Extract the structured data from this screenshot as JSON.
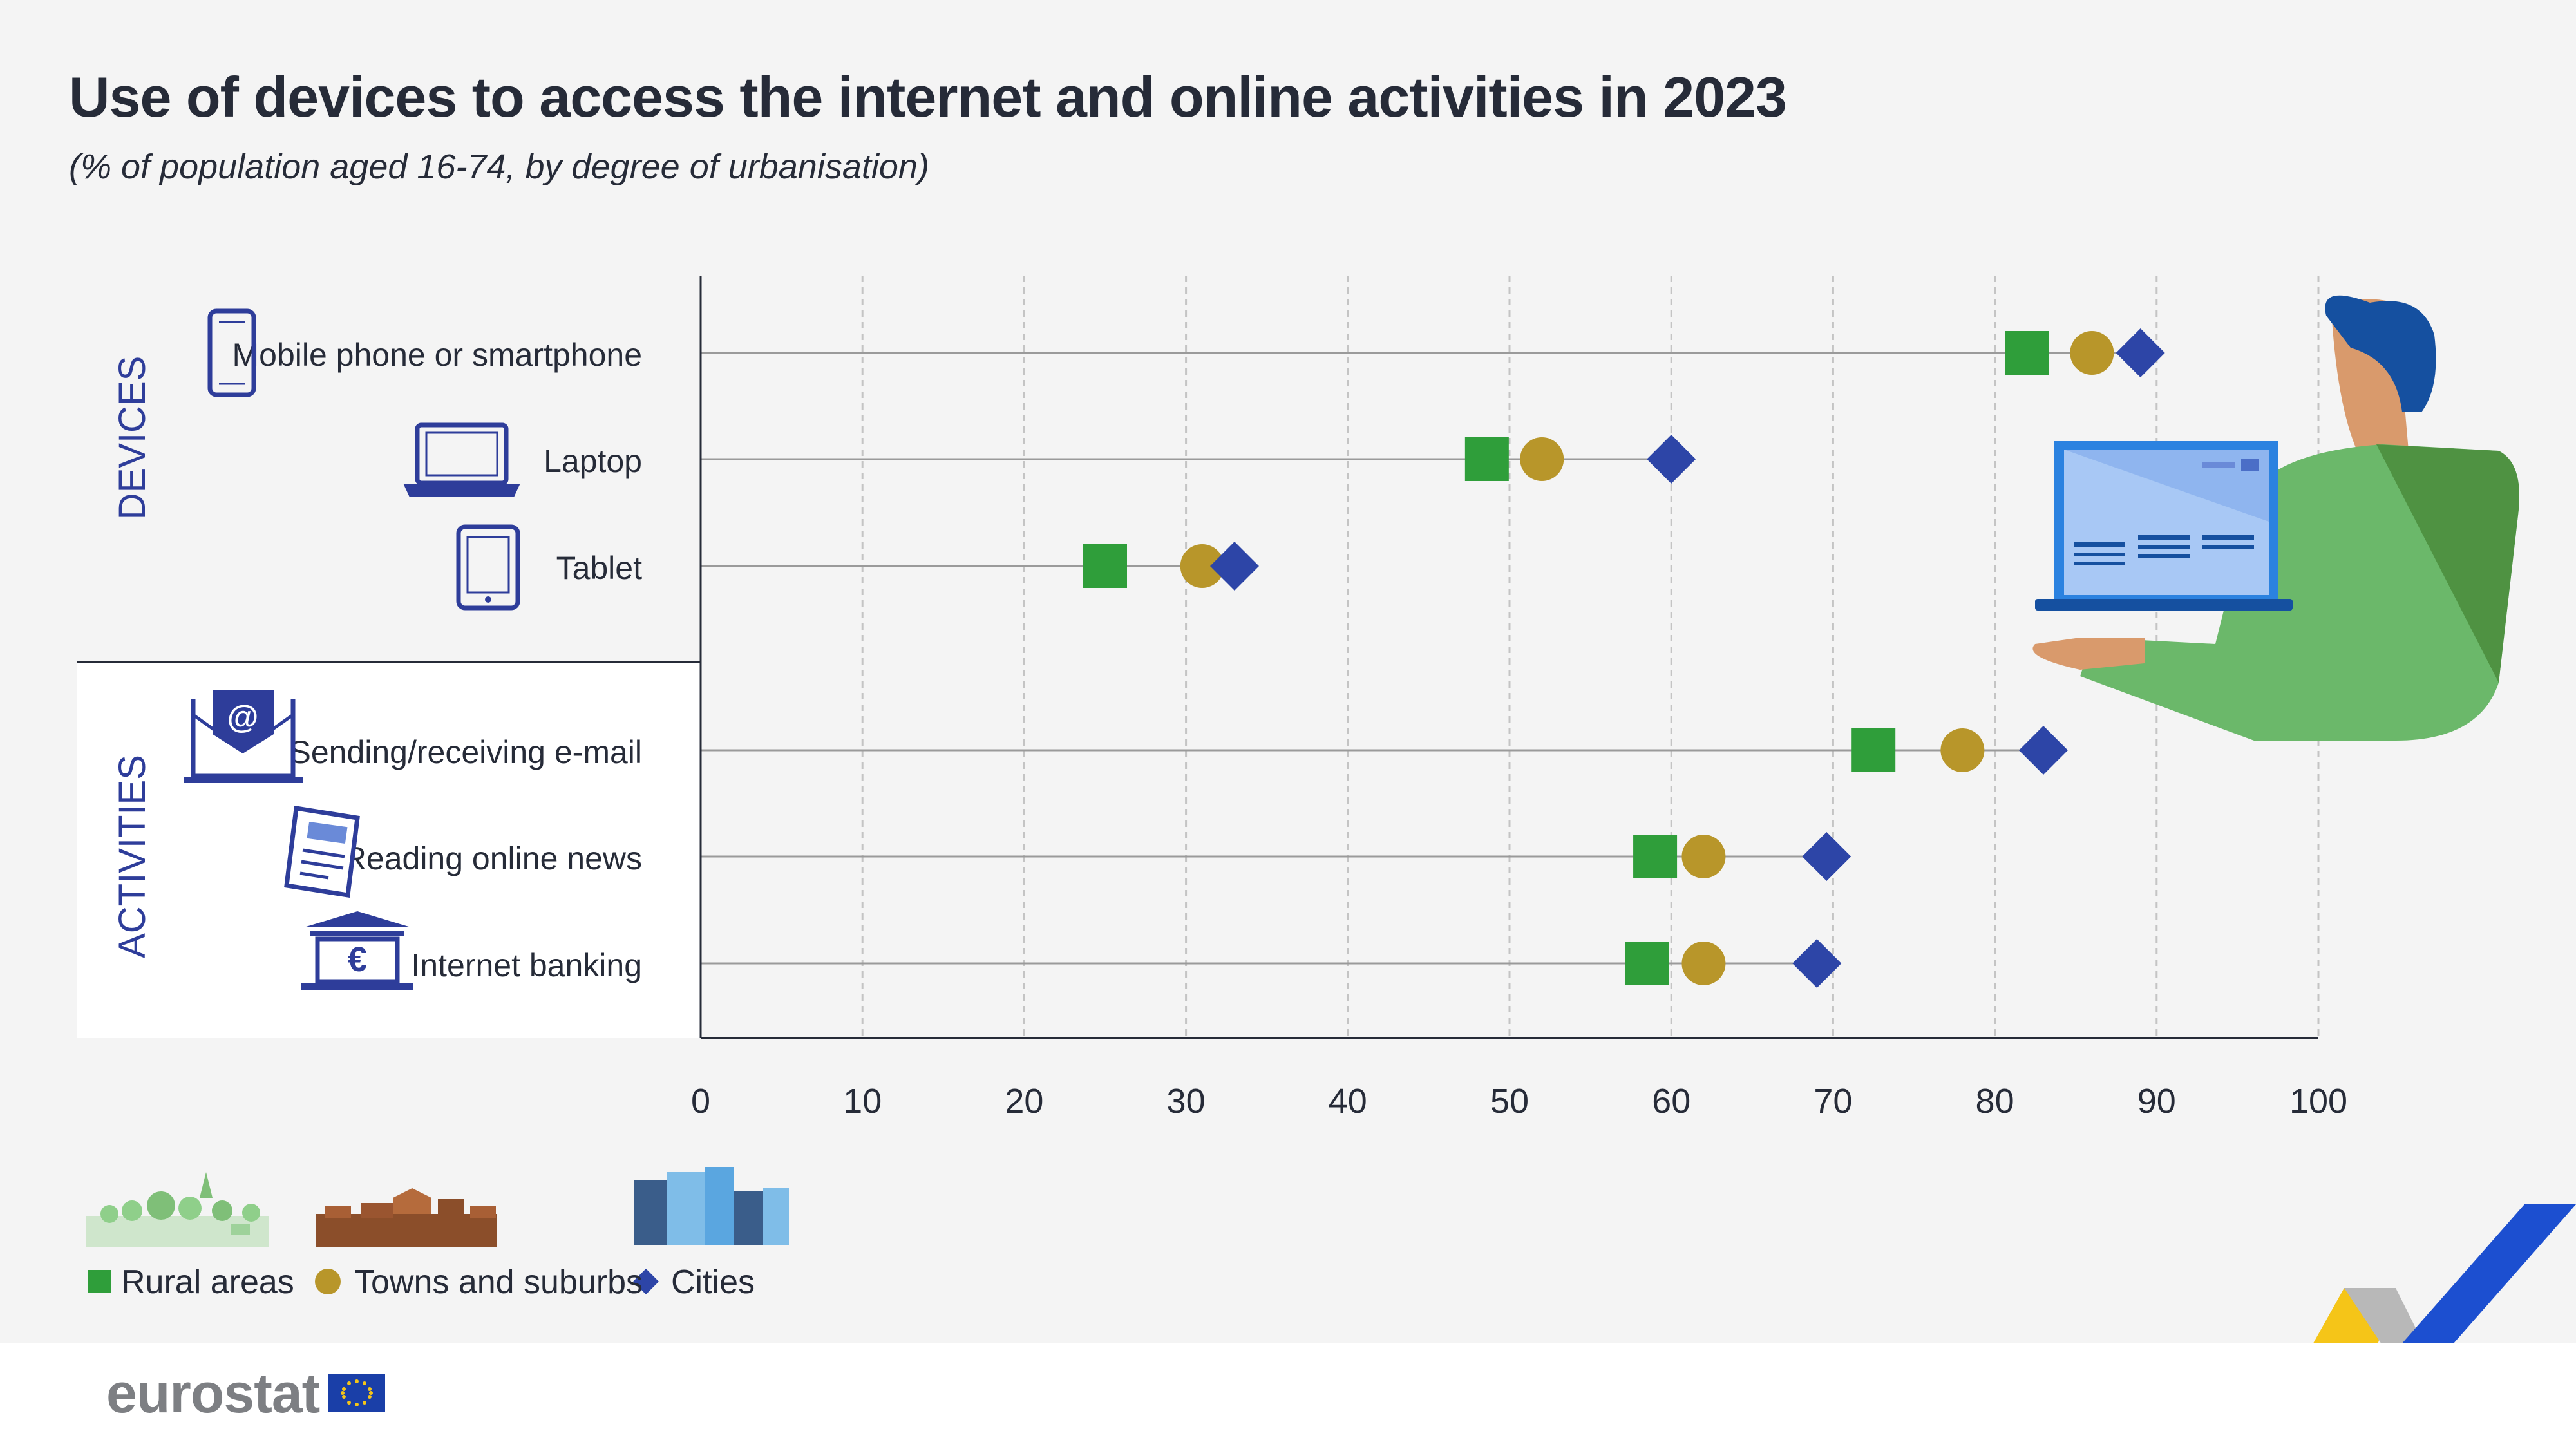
{
  "title": "Use of devices to access the internet and online activities in 2023",
  "subtitle": "(% of population aged 16-74, by degree of urbanisation)",
  "brand": "eurostat",
  "colors": {
    "rural": "#2f9e3a",
    "towns": "#b8962a",
    "cities": "#2d45a7",
    "accent_blue": "#2e3d9a"
  },
  "chart_data": {
    "type": "dot-plot",
    "xlim": [
      0,
      100
    ],
    "ticks": [
      0,
      10,
      20,
      30,
      40,
      50,
      60,
      70,
      80,
      90,
      100
    ],
    "grid": "vertical dashed",
    "legend_placement": "bottom-left",
    "groups": [
      {
        "label": "DEVICES",
        "categories": [
          {
            "label": "Mobile phone or smartphone",
            "icon": "smartphone-icon",
            "rural": 82,
            "towns": 86,
            "cities": 89
          },
          {
            "label": "Laptop",
            "icon": "laptop-icon",
            "rural": 48.6,
            "towns": 52,
            "cities": 60
          },
          {
            "label": "Tablet",
            "icon": "tablet-icon",
            "rural": 25,
            "towns": 31,
            "cities": 33
          }
        ]
      },
      {
        "label": "ACTIVITIES",
        "categories": [
          {
            "label": "Sending/receiving e-mail",
            "icon": "email-icon",
            "rural": 72.5,
            "towns": 78,
            "cities": 83
          },
          {
            "label": "Reading online news",
            "icon": "newspaper-icon",
            "rural": 59,
            "towns": 62,
            "cities": 69.6
          },
          {
            "label": "Internet banking",
            "icon": "bank-icon",
            "rural": 58.5,
            "towns": 62,
            "cities": 69
          }
        ]
      }
    ],
    "series": [
      {
        "key": "rural",
        "name": "Rural areas",
        "marker": "square"
      },
      {
        "key": "towns",
        "name": "Towns and suburbs",
        "marker": "circle"
      },
      {
        "key": "cities",
        "name": "Cities",
        "marker": "diamond"
      }
    ]
  }
}
